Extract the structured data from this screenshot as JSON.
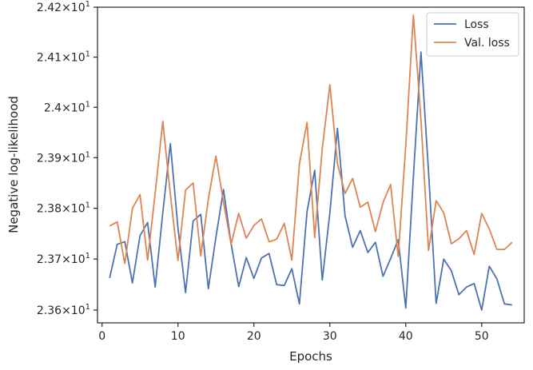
{
  "chart_data": {
    "type": "line",
    "title": "",
    "xlabel": "Epochs",
    "ylabel": "Negative log-likelihood",
    "xlim": [
      -0.6,
      55.6
    ],
    "ylim": [
      23.575,
      24.2
    ],
    "yscale": "log",
    "grid": false,
    "legend_position": "top-right",
    "x_ticks": [
      0,
      10,
      20,
      30,
      40,
      50
    ],
    "x_tick_labels": [
      "0",
      "10",
      "20",
      "30",
      "40",
      "50"
    ],
    "y_ticks": [
      {
        "value": 23.6,
        "mantissa": "2.36",
        "base": "10",
        "exponent": "1"
      },
      {
        "value": 23.7,
        "mantissa": "2.37",
        "base": "10",
        "exponent": "1"
      },
      {
        "value": 23.8,
        "mantissa": "2.38",
        "base": "10",
        "exponent": "1"
      },
      {
        "value": 23.9,
        "mantissa": "2.39",
        "base": "10",
        "exponent": "1"
      },
      {
        "value": 24.0,
        "mantissa": "2.4",
        "base": "10",
        "exponent": "1"
      },
      {
        "value": 24.1,
        "mantissa": "2.41",
        "base": "10",
        "exponent": "1"
      },
      {
        "value": 24.2,
        "mantissa": "2.42",
        "base": "10",
        "exponent": "1"
      }
    ],
    "x": [
      1,
      2,
      3,
      4,
      5,
      6,
      7,
      8,
      9,
      10,
      11,
      12,
      13,
      14,
      15,
      16,
      17,
      18,
      19,
      20,
      21,
      22,
      23,
      24,
      25,
      26,
      27,
      28,
      29,
      30,
      31,
      32,
      33,
      34,
      35,
      36,
      37,
      38,
      39,
      40,
      41,
      42,
      43,
      44,
      45,
      46,
      47,
      48,
      49,
      50,
      51,
      52,
      53,
      54
    ],
    "series": [
      {
        "name": "Loss",
        "color": "#4c72b0",
        "values": [
          23.663,
          23.729,
          23.734,
          23.653,
          23.746,
          23.772,
          23.645,
          23.791,
          23.928,
          23.761,
          23.634,
          23.775,
          23.788,
          23.642,
          23.743,
          23.837,
          23.73,
          23.646,
          23.703,
          23.662,
          23.702,
          23.711,
          23.65,
          23.648,
          23.681,
          23.612,
          23.793,
          23.875,
          23.659,
          23.791,
          23.958,
          23.785,
          23.723,
          23.756,
          23.713,
          23.733,
          23.666,
          23.701,
          23.738,
          23.604,
          23.862,
          24.11,
          23.871,
          23.613,
          23.7,
          23.677,
          23.63,
          23.645,
          23.652,
          23.6,
          23.686,
          23.661,
          23.612,
          23.61
        ]
      },
      {
        "name": "Val. loss",
        "color": "#dd8452",
        "values": [
          23.765,
          23.773,
          23.691,
          23.8,
          23.827,
          23.698,
          23.83,
          23.972,
          23.827,
          23.697,
          23.836,
          23.85,
          23.706,
          23.818,
          23.903,
          23.812,
          23.729,
          23.79,
          23.741,
          23.766,
          23.779,
          23.734,
          23.739,
          23.77,
          23.698,
          23.888,
          23.97,
          23.742,
          23.918,
          24.045,
          23.888,
          23.829,
          23.859,
          23.802,
          23.812,
          23.754,
          23.811,
          23.847,
          23.705,
          23.925,
          24.184,
          23.975,
          23.717,
          23.815,
          23.791,
          23.73,
          23.74,
          23.756,
          23.709,
          23.79,
          23.759,
          23.719,
          23.719,
          23.733
        ]
      }
    ]
  }
}
